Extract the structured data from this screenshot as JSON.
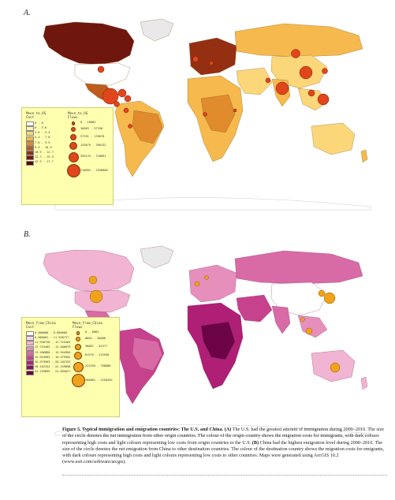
{
  "panelA": {
    "label": "A.",
    "legend": {
      "title_left": "Move_to_US\nCost",
      "title_right": "Move_to_US\nFlows",
      "cost_classes": [
        {
          "range": "0 - 0",
          "color": "#ffffff"
        },
        {
          "range": "0 - 3.6",
          "color": "#fff3b8"
        },
        {
          "range": "3.6 - 5.4",
          "color": "#fbd77a"
        },
        {
          "range": "5.4 - 7.6",
          "color": "#f6b94d"
        },
        {
          "range": "7.6 - 9.9",
          "color": "#e08b2c"
        },
        {
          "range": "9.9 - 10.9",
          "color": "#bf5c1c"
        },
        {
          "range": "10.9 - 12.7",
          "color": "#952f12"
        },
        {
          "range": "12.7 - 15.9",
          "color": "#6f170e"
        },
        {
          "range": "15.9 - 17.7",
          "color": "#55060b"
        }
      ],
      "flow_classes": [
        {
          "range": "0 - 16082"
        },
        {
          "range": "16083 - 57330"
        },
        {
          "range": "57331 - 133678"
        },
        {
          "range": "133679 - 390132"
        },
        {
          "range": "390133 - 718891"
        },
        {
          "range": "718892 - 2358000"
        }
      ]
    }
  },
  "panelB": {
    "label": "B.",
    "legend": {
      "title_left": "Move_from_China\nCost",
      "title_right": "Move_from_China\nFlows",
      "cost_classes": [
        {
          "range": "0.000000 - 0.000000",
          "color": "#ffffff"
        },
        {
          "range": "0.000001 - 11.930727",
          "color": "#f8d6e6"
        },
        {
          "range": "11.930728 - 12.725464",
          "color": "#f1b4d2"
        },
        {
          "range": "12.725465 - 13.406879",
          "color": "#e68fbd"
        },
        {
          "range": "13.406880 - 15.944984",
          "color": "#d86aa6"
        },
        {
          "range": "15.944985 - 16.979902",
          "color": "#c6428d"
        },
        {
          "range": "16.979903 - 20.102333",
          "color": "#ae1f75"
        },
        {
          "range": "20.102334 - 22.159898",
          "color": "#8d0d5d"
        },
        {
          "range": "22.159899 - 24.095827",
          "color": "#6b0346"
        }
      ],
      "flow_classes": [
        {
          "range": "0 - 8863"
        },
        {
          "range": "8864 - 38886"
        },
        {
          "range": "38887 - 81577"
        },
        {
          "range": "81578 - 222558"
        },
        {
          "range": "222559 - 768880"
        },
        {
          "range": "768881 - 2256392"
        }
      ]
    }
  },
  "caption": {
    "heading": "Figure 5.  Typical immigration and emigration countries: The U.S. and China.",
    "part_a_marker": "(A)",
    "part_a_text": " The U.S. had the greatest amount of immigration during 2000–2010. The size of the circle denotes the net immigration from other origin countries. The colour of the origin country shows the migration costs for immigrants, with dark colours representing high costs and light colours representing low costs from origin countries to the U.S. ",
    "part_b_marker": "(B)",
    "part_b_text": " China had the highest emigration level during 2000–2010. The size of the circle denotes the net emigration from China to other destination countries. The colour of the destination country shows the migration costs for emigrants, with dark colours representing high costs and light colours representing low costs to other countries. Maps were generated using ArcGIS 10.2 (www.esri.com/software/arcgis)."
  },
  "colors": {
    "panelA_circle": "#e0451c",
    "panelB_circle": "#f0a21a",
    "legend_bg": "#ffffb0"
  }
}
